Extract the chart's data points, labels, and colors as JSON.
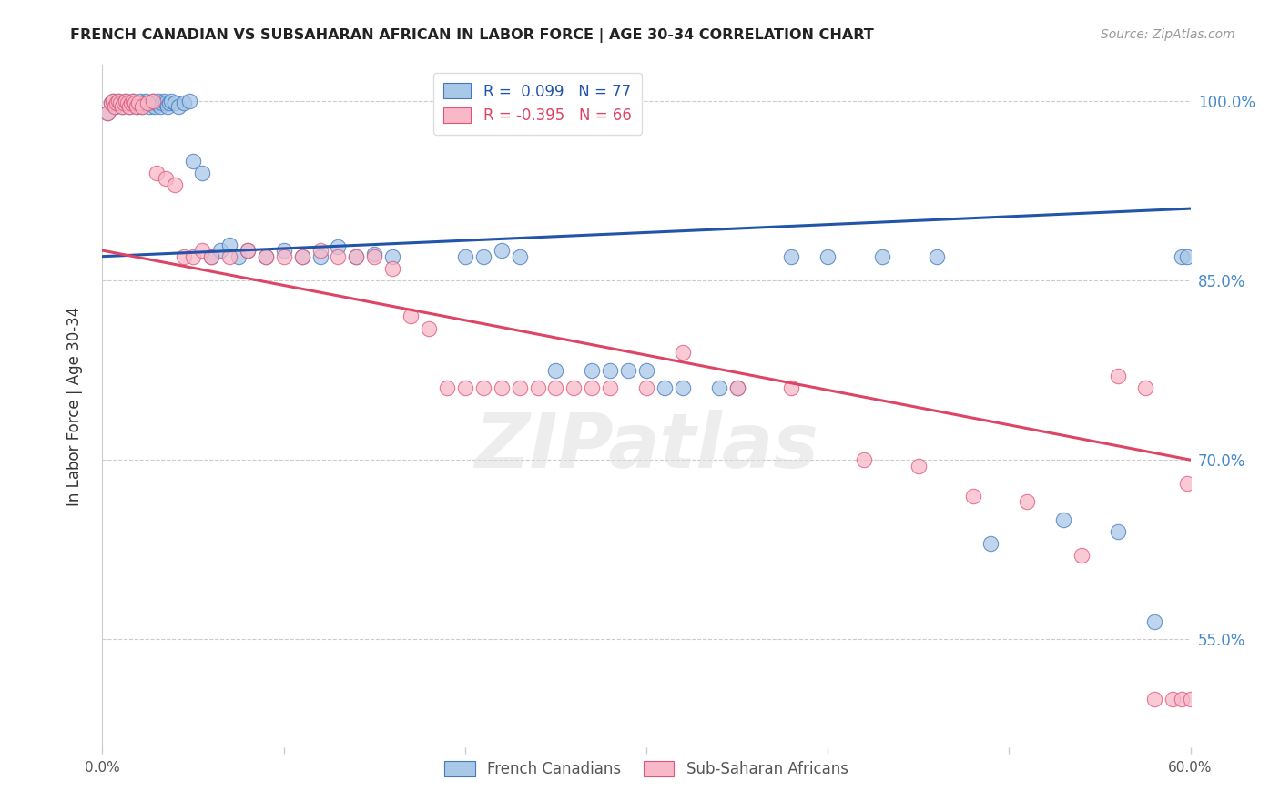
{
  "title": "FRENCH CANADIAN VS SUBSAHARAN AFRICAN IN LABOR FORCE | AGE 30-34 CORRELATION CHART",
  "source": "Source: ZipAtlas.com",
  "ylabel": "In Labor Force | Age 30-34",
  "legend_blue_label": "French Canadians",
  "legend_pink_label": "Sub-Saharan Africans",
  "r_blue": 0.099,
  "n_blue": 77,
  "r_pink": -0.395,
  "n_pink": 66,
  "xmin": 0.0,
  "xmax": 0.6,
  "ymin": 0.46,
  "ymax": 1.03,
  "ytick_vals": [
    0.55,
    0.7,
    0.85,
    1.0
  ],
  "ytick_labels": [
    "55.0%",
    "70.0%",
    "85.0%",
    "100.0%"
  ],
  "blue_color": "#a8c8e8",
  "pink_color": "#f8b8c8",
  "blue_edge_color": "#4477bb",
  "pink_edge_color": "#dd5577",
  "blue_line_color": "#2255aa",
  "pink_line_color": "#dd4466",
  "blue_line_y0": 0.87,
  "blue_line_y1": 0.91,
  "pink_line_y0": 0.875,
  "pink_line_y1": 0.7,
  "watermark": "ZIPatlas",
  "blue_x": [
    0.003,
    0.005,
    0.006,
    0.007,
    0.008,
    0.009,
    0.01,
    0.011,
    0.012,
    0.013,
    0.014,
    0.015,
    0.016,
    0.017,
    0.018,
    0.019,
    0.02,
    0.021,
    0.022,
    0.023,
    0.024,
    0.025,
    0.026,
    0.027,
    0.028,
    0.029,
    0.03,
    0.031,
    0.032,
    0.033,
    0.034,
    0.035,
    0.036,
    0.037,
    0.038,
    0.04,
    0.042,
    0.045,
    0.048,
    0.05,
    0.055,
    0.06,
    0.065,
    0.07,
    0.075,
    0.08,
    0.09,
    0.1,
    0.11,
    0.12,
    0.13,
    0.14,
    0.15,
    0.16,
    0.2,
    0.21,
    0.22,
    0.23,
    0.25,
    0.27,
    0.28,
    0.29,
    0.3,
    0.31,
    0.32,
    0.34,
    0.35,
    0.38,
    0.4,
    0.43,
    0.46,
    0.49,
    0.53,
    0.56,
    0.58,
    0.595,
    0.598
  ],
  "blue_y": [
    0.99,
    0.998,
    1.0,
    0.995,
    0.998,
    1.0,
    0.998,
    0.995,
    0.998,
    1.0,
    0.998,
    0.995,
    0.998,
    1.0,
    0.998,
    0.995,
    0.998,
    1.0,
    0.995,
    0.998,
    1.0,
    0.998,
    0.995,
    0.998,
    1.0,
    0.995,
    0.998,
    1.0,
    0.995,
    0.998,
    1.0,
    0.998,
    0.995,
    0.998,
    1.0,
    0.998,
    0.995,
    0.998,
    1.0,
    0.95,
    0.94,
    0.87,
    0.875,
    0.88,
    0.87,
    0.875,
    0.87,
    0.875,
    0.87,
    0.87,
    0.878,
    0.87,
    0.872,
    0.87,
    0.87,
    0.87,
    0.875,
    0.87,
    0.775,
    0.775,
    0.775,
    0.775,
    0.775,
    0.76,
    0.76,
    0.76,
    0.76,
    0.87,
    0.87,
    0.87,
    0.87,
    0.63,
    0.65,
    0.64,
    0.565,
    0.87,
    0.87
  ],
  "pink_x": [
    0.003,
    0.005,
    0.006,
    0.007,
    0.008,
    0.009,
    0.01,
    0.011,
    0.012,
    0.013,
    0.014,
    0.015,
    0.016,
    0.017,
    0.018,
    0.019,
    0.02,
    0.022,
    0.025,
    0.028,
    0.03,
    0.035,
    0.04,
    0.045,
    0.05,
    0.055,
    0.06,
    0.07,
    0.08,
    0.09,
    0.1,
    0.11,
    0.12,
    0.13,
    0.14,
    0.15,
    0.16,
    0.17,
    0.18,
    0.19,
    0.2,
    0.21,
    0.22,
    0.23,
    0.24,
    0.25,
    0.26,
    0.27,
    0.28,
    0.3,
    0.32,
    0.35,
    0.38,
    0.42,
    0.45,
    0.48,
    0.51,
    0.54,
    0.56,
    0.575,
    0.58,
    0.59,
    0.595,
    0.598,
    0.6,
    0.605
  ],
  "pink_y": [
    0.99,
    0.998,
    1.0,
    0.995,
    0.998,
    1.0,
    0.998,
    0.995,
    0.998,
    1.0,
    0.998,
    0.995,
    0.998,
    1.0,
    0.998,
    0.995,
    0.998,
    0.995,
    0.998,
    1.0,
    0.94,
    0.935,
    0.93,
    0.87,
    0.87,
    0.875,
    0.87,
    0.87,
    0.875,
    0.87,
    0.87,
    0.87,
    0.875,
    0.87,
    0.87,
    0.87,
    0.86,
    0.82,
    0.81,
    0.76,
    0.76,
    0.76,
    0.76,
    0.76,
    0.76,
    0.76,
    0.76,
    0.76,
    0.76,
    0.76,
    0.79,
    0.76,
    0.76,
    0.7,
    0.695,
    0.67,
    0.665,
    0.62,
    0.77,
    0.76,
    0.5,
    0.5,
    0.5,
    0.68,
    0.5,
    0.5
  ]
}
